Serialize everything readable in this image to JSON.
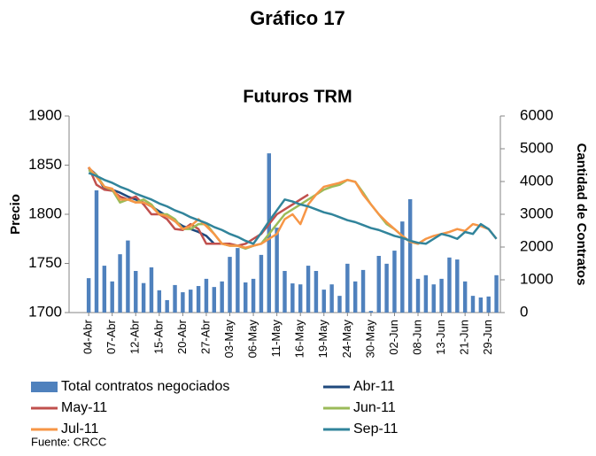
{
  "header": "Gráfico 17",
  "source": "Fuente: CRCC",
  "chart_data": {
    "type": "bar_line",
    "title": "Futuros TRM",
    "ylabel": "Precio",
    "y2label": "Cantidad de Contratos",
    "categories": [
      null,
      null,
      "04-Abr",
      null,
      null,
      "07-Abr",
      null,
      null,
      "12-Abr",
      null,
      null,
      "15-Abr",
      null,
      null,
      "20-Abr",
      null,
      null,
      "27-Abr",
      null,
      null,
      "03-May",
      null,
      null,
      "06-May",
      null,
      null,
      "11-May",
      null,
      null,
      "16-May",
      null,
      null,
      "19-May",
      null,
      null,
      "24-May",
      null,
      null,
      "30-May",
      null,
      null,
      "02-Jun",
      null,
      null,
      "08-Jun",
      null,
      null,
      "13-Jun",
      null,
      null,
      "21-Jun",
      null,
      null,
      "29-Jun",
      null
    ],
    "ylim": [
      1700,
      1900
    ],
    "yticks": [
      1700,
      1750,
      1800,
      1850,
      1900
    ],
    "y2lim": [
      0,
      6000
    ],
    "y2ticks": [
      0,
      1000,
      2000,
      3000,
      4000,
      5000,
      6000
    ],
    "grid": false,
    "series": [
      {
        "name": "Total contratos negociados",
        "type": "bar",
        "axis": "y2",
        "color": "#4f81bd",
        "values": [
          null,
          null,
          1050,
          3730,
          1430,
          950,
          1780,
          2200,
          1270,
          900,
          1380,
          680,
          380,
          840,
          620,
          700,
          810,
          1030,
          780,
          950,
          1700,
          1970,
          920,
          1030,
          1760,
          4860,
          2590,
          1270,
          890,
          860,
          1430,
          1270,
          700,
          860,
          510,
          1490,
          950,
          1300,
          50,
          1730,
          1490,
          1890,
          2780,
          3460,
          1030,
          1140,
          860,
          1030,
          1680,
          1620,
          950,
          510,
          460,
          490,
          1140
        ]
      },
      {
        "name": "Abr-11",
        "type": "line",
        "color": "#1f497d",
        "values": [
          null,
          null,
          1847,
          1840,
          1826,
          1825,
          1822,
          1818,
          1815,
          1812,
          1808,
          1803,
          1798,
          1793,
          1788,
          1785,
          1782,
          1778,
          1770,
          null,
          null,
          null,
          null,
          null,
          null,
          null,
          null,
          null,
          null,
          null,
          null,
          null,
          null,
          null,
          null,
          null,
          null,
          null,
          null,
          null,
          null,
          null,
          null,
          null,
          null,
          null,
          null,
          null,
          null,
          null,
          null,
          null,
          null,
          null,
          null
        ]
      },
      {
        "name": "May-11",
        "type": "line",
        "color": "#c0504d",
        "values": [
          null,
          null,
          1848,
          1830,
          1825,
          1824,
          1818,
          1815,
          1818,
          1810,
          1800,
          1800,
          1795,
          1785,
          1784,
          1790,
          1785,
          1770,
          1770,
          1770,
          1770,
          1768,
          1770,
          1775,
          1780,
          1790,
          1800,
          1805,
          1810,
          1815,
          1820,
          null,
          null,
          null,
          null,
          null,
          null,
          null,
          null,
          null,
          null,
          null,
          null,
          null,
          null,
          null,
          null,
          null,
          null,
          null,
          null,
          null,
          null,
          null,
          null
        ]
      },
      {
        "name": "Jun-11",
        "type": "line",
        "color": "#9bbb59",
        "values": [
          null,
          null,
          1845,
          1840,
          1828,
          1825,
          1812,
          1815,
          1812,
          1815,
          1810,
          1800,
          1800,
          1795,
          1785,
          1785,
          1790,
          1790,
          1780,
          1770,
          1768,
          1768,
          1765,
          1768,
          1770,
          1780,
          1790,
          1800,
          1805,
          1810,
          1815,
          1820,
          1825,
          1828,
          1830,
          1835,
          1833,
          1822,
          1810,
          1800,
          1790,
          1785,
          1778,
          1772,
          1770,
          1775,
          null,
          null,
          null,
          null,
          null,
          null,
          null,
          null,
          null
        ]
      },
      {
        "name": "Jul-11",
        "type": "line",
        "color": "#f79646",
        "values": [
          null,
          null,
          1848,
          1838,
          1828,
          1826,
          1815,
          1815,
          1812,
          1812,
          1808,
          1800,
          1798,
          1793,
          1785,
          1788,
          1795,
          1788,
          1780,
          1770,
          1768,
          1768,
          1766,
          1768,
          1770,
          1775,
          1780,
          1795,
          1800,
          1790,
          1810,
          1820,
          1828,
          1830,
          1832,
          1835,
          1833,
          1820,
          1810,
          1800,
          1792,
          1785,
          1778,
          1772,
          1770,
          1775,
          1778,
          1780,
          1782,
          1785,
          1783,
          1790,
          1788,
          1785,
          1775
        ]
      },
      {
        "name": "Sep-11",
        "type": "line",
        "color": "#31849b",
        "values": [
          null,
          null,
          1842,
          1839,
          1835,
          1832,
          1828,
          1825,
          1821,
          1818,
          1815,
          1811,
          1808,
          1804,
          1801,
          1797,
          1794,
          1791,
          1787,
          1784,
          1780,
          1777,
          1773,
          1770,
          1781,
          1793,
          1804,
          1815,
          1813,
          1810,
          1808,
          1805,
          1802,
          1800,
          1797,
          1794,
          1792,
          1789,
          1786,
          1784,
          1781,
          1778,
          1776,
          1773,
          1771,
          1770,
          1775,
          1780,
          1778,
          1775,
          1782,
          1780,
          1790,
          1785,
          1775
        ]
      }
    ]
  }
}
